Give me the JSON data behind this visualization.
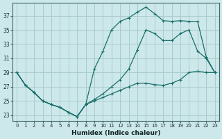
{
  "xlabel": "Humidex (Indice chaleur)",
  "bg_color": "#cce8ea",
  "grid_color": "#aacccc",
  "line_color": "#1a6e6a",
  "xlim": [
    -0.5,
    23.5
  ],
  "ylim": [
    22.2,
    38.8
  ],
  "xticks": [
    0,
    1,
    2,
    3,
    4,
    5,
    6,
    7,
    8,
    9,
    10,
    11,
    12,
    13,
    14,
    15,
    16,
    17,
    18,
    19,
    20,
    21,
    22,
    23
  ],
  "yticks": [
    23,
    25,
    27,
    29,
    31,
    33,
    35,
    37
  ],
  "line1_x": [
    0,
    1,
    2,
    3,
    4,
    5,
    6,
    7,
    8,
    9,
    10,
    11,
    12,
    13,
    14,
    15,
    16,
    17,
    18,
    19,
    20,
    21,
    22,
    23
  ],
  "line1_y": [
    29,
    27.2,
    26.2,
    25.0,
    24.5,
    24.1,
    23.4,
    22.8,
    24.5,
    25.0,
    25.5,
    26.0,
    26.5,
    27.0,
    27.5,
    27.5,
    27.3,
    27.2,
    27.5,
    28.0,
    29.0,
    29.2,
    29.0,
    29.0
  ],
  "line2_x": [
    0,
    1,
    2,
    3,
    4,
    5,
    6,
    7,
    8,
    9,
    10,
    11,
    12,
    13,
    14,
    15,
    16,
    17,
    18,
    19,
    20,
    21,
    22,
    23
  ],
  "line2_y": [
    29,
    27.2,
    26.2,
    25.0,
    24.5,
    24.1,
    23.4,
    22.8,
    24.5,
    25.2,
    26.0,
    27.0,
    28.0,
    29.5,
    32.2,
    35.0,
    34.5,
    33.5,
    33.5,
    34.5,
    35.0,
    32.0,
    31.0,
    29.0
  ],
  "line3_x": [
    0,
    1,
    2,
    3,
    4,
    5,
    6,
    7,
    8,
    9,
    10,
    11,
    12,
    13,
    14,
    15,
    16,
    17,
    18,
    19,
    20,
    21,
    22,
    23
  ],
  "line3_y": [
    29,
    27.2,
    26.2,
    25.0,
    24.5,
    24.1,
    23.4,
    22.8,
    24.5,
    29.5,
    32.0,
    35.0,
    36.2,
    36.7,
    37.5,
    38.2,
    37.3,
    36.3,
    36.2,
    36.3,
    36.2,
    36.2,
    31.2,
    29.0
  ]
}
